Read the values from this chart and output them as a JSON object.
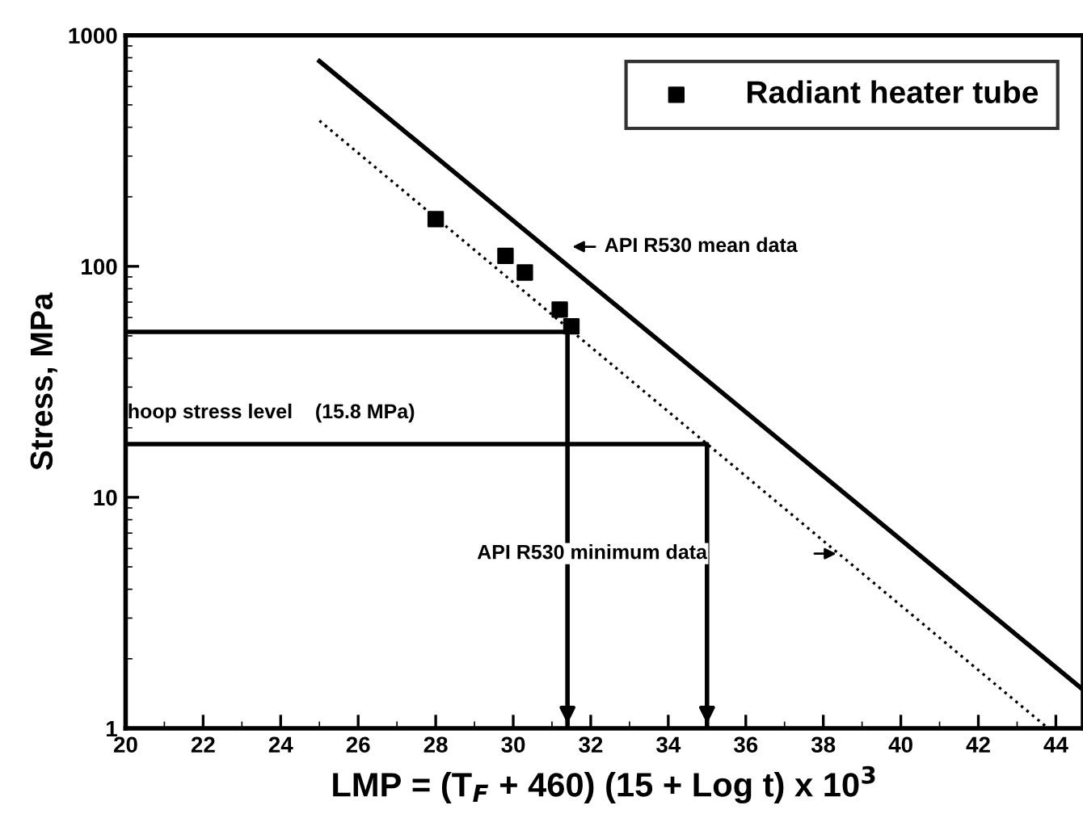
{
  "chart_data": {
    "type": "scatter",
    "xlabel": "LMP = (T$_{F}$ + 460) (15 + Log t) x 10$^{3}$",
    "ylabel": "Stress, MPa",
    "series": [
      {
        "name": "Radiant heater tube",
        "color": "#000000",
        "marker": "square",
        "x": [
          28.0,
          29.8,
          30.3,
          31.2,
          31.5
        ],
        "values": [
          160,
          111,
          94,
          65,
          55
        ]
      },
      {
        "type": "line",
        "color": "#000000",
        "line_style": "solid",
        "x": [
          25.0,
          44.7
        ],
        "values": [
          773,
          1.47
        ]
      },
      {
        "type": "line",
        "color": "#000000",
        "line_style": "dotted",
        "x": [
          25.0,
          43.8
        ],
        "values": [
          427,
          1
        ]
      },
      {
        "type": "line",
        "color": "#000000",
        "line_style": "solid",
        "x": [
          20,
          31.4,
          31.4
        ],
        "values": [
          52,
          52,
          1
        ]
      },
      {
        "type": "line",
        "color": "#000000",
        "line_style": "solid",
        "x": [
          20,
          35.0,
          35.0
        ],
        "values": [
          17,
          17,
          1
        ]
      }
    ],
    "annotations": [
      "API R530 mean data",
      "API R530 minimum data",
      "hoop stress level    (15.8 MPa)"
    ],
    "xlim": [
      20,
      44.7
    ],
    "ylim": [
      1,
      1000
    ],
    "xticks": [
      20,
      22,
      24,
      26,
      28,
      30,
      32,
      34,
      36,
      38,
      40,
      42,
      44
    ],
    "yticks": [
      1,
      10,
      100,
      1000
    ],
    "log": "y",
    "grid": false,
    "legend": "top right"
  }
}
